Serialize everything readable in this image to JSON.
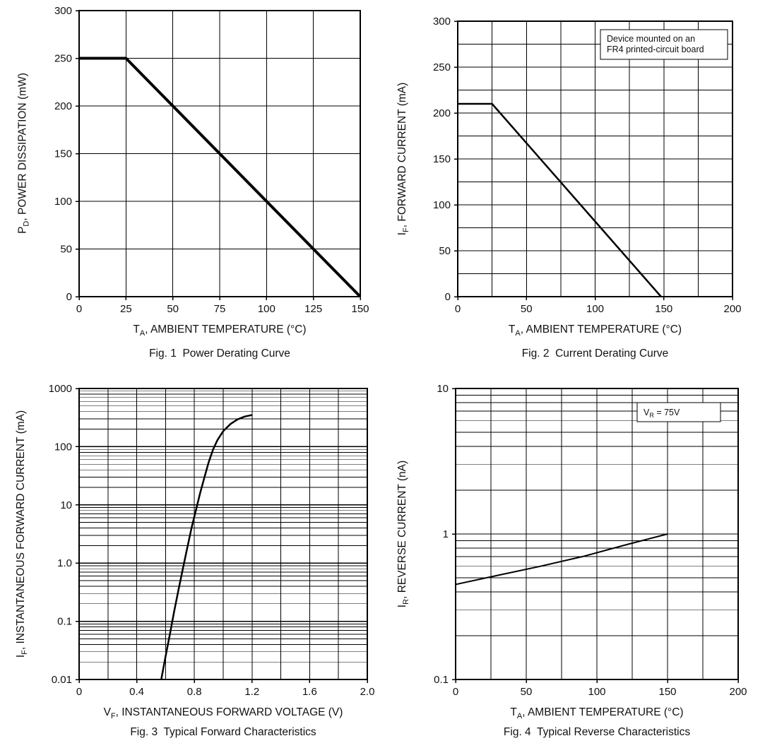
{
  "page": {
    "background": "#ffffff",
    "text_color": "#111111",
    "line_color": "#000000"
  },
  "chart_data": [
    {
      "type": "line",
      "title": "Fig. 1  Power Derating Curve",
      "xlabel": "TA, AMBIENT TEMPERATURE (°C)",
      "ylabel": "PD, POWER DISSIPATION (mW)",
      "xlabel_parts": {
        "sym": "T",
        "sub": "A",
        "rest": ", AMBIENT TEMPERATURE (°C)"
      },
      "ylabel_parts": {
        "sym": "P",
        "sub": "D",
        "rest": ", POWER DISSIPATION (mW)"
      },
      "x": {
        "scale": "linear",
        "min": 0,
        "max": 150,
        "grid_step": 25,
        "tick_values": [
          0,
          25,
          50,
          75,
          100,
          125,
          150
        ],
        "tick_labels": [
          "0",
          "25",
          "50",
          "75",
          "100",
          "125",
          "150"
        ]
      },
      "y": {
        "scale": "linear",
        "min": 0,
        "max": 300,
        "grid_step": 50,
        "tick_values": [
          0,
          50,
          100,
          150,
          200,
          250,
          300
        ],
        "tick_labels": [
          "0",
          "50",
          "100",
          "150",
          "200",
          "250",
          "300"
        ]
      },
      "series": [
        {
          "name": "power-derating",
          "stroke_width": 4,
          "points": [
            [
              0,
              250
            ],
            [
              25,
              250
            ],
            [
              150,
              0
            ]
          ]
        }
      ],
      "annotation": null
    },
    {
      "type": "line",
      "title": "Fig. 2  Current Derating Curve",
      "xlabel": "TA, AMBIENT TEMPERATURE (°C)",
      "ylabel": "IF, FORWARD CURRENT (mA)",
      "xlabel_parts": {
        "sym": "T",
        "sub": "A",
        "rest": ", AMBIENT TEMPERATURE (°C)"
      },
      "ylabel_parts": {
        "sym": "I",
        "sub": "F",
        "rest": ", FORWARD CURRENT (mA)"
      },
      "x": {
        "scale": "linear",
        "min": 0,
        "max": 200,
        "grid_step": 25,
        "tick_values": [
          0,
          50,
          100,
          150,
          200
        ],
        "tick_labels": [
          "0",
          "50",
          "100",
          "150",
          "200"
        ]
      },
      "y": {
        "scale": "linear",
        "min": 0,
        "max": 300,
        "grid_step": 25,
        "tick_values": [
          0,
          50,
          100,
          150,
          200,
          250,
          300
        ],
        "tick_labels": [
          "0",
          "50",
          "100",
          "150",
          "200",
          "250",
          "300"
        ]
      },
      "series": [
        {
          "name": "current-derating",
          "stroke_width": 2.5,
          "points": [
            [
              0,
              210
            ],
            [
              25,
              210
            ],
            [
              148,
              0
            ]
          ]
        }
      ],
      "annotation": {
        "lines": [
          [
            {
              "text": "Device mounted on an"
            }
          ],
          [
            {
              "text": "FR4 printed-circuit board"
            }
          ]
        ]
      }
    },
    {
      "type": "line",
      "title": "Fig. 3  Typical Forward Characteristics",
      "xlabel": "VF, INSTANTANEOUS FORWARD VOLTAGE (V)",
      "ylabel": "IF, INSTANTANEOUS FORWARD CURRENT (mA)",
      "xlabel_parts": {
        "sym": "V",
        "sub": "F",
        "rest": ", INSTANTANEOUS FORWARD VOLTAGE (V)"
      },
      "ylabel_parts": {
        "sym": "I",
        "sub": "F",
        "rest": ", INSTANTANEOUS FORWARD CURRENT (mA)"
      },
      "x": {
        "scale": "linear",
        "min": 0,
        "max": 2,
        "grid_step": 0.2,
        "tick_values": [
          0,
          0.4,
          0.8,
          1.2,
          1.6,
          2
        ],
        "tick_labels": [
          "0",
          "0.4",
          "0.8",
          "1.2",
          "1.6",
          "2.0"
        ]
      },
      "y": {
        "scale": "log",
        "min": 0.01,
        "max": 1000,
        "tick_values": [
          1000,
          100,
          10,
          1,
          0.1,
          0.01
        ],
        "tick_labels": [
          "1000",
          "100",
          "10",
          "1.0",
          "0.1",
          "0.01"
        ]
      },
      "series": [
        {
          "name": "forward-characteristic",
          "stroke_width": 2.5,
          "points": [
            [
              0.57,
              0.01
            ],
            [
              0.6,
              0.025
            ],
            [
              0.63,
              0.06
            ],
            [
              0.66,
              0.15
            ],
            [
              0.69,
              0.35
            ],
            [
              0.72,
              0.8
            ],
            [
              0.75,
              1.8
            ],
            [
              0.78,
              4
            ],
            [
              0.81,
              8
            ],
            [
              0.84,
              16
            ],
            [
              0.87,
              30
            ],
            [
              0.9,
              55
            ],
            [
              0.93,
              90
            ],
            [
              0.96,
              130
            ],
            [
              1.0,
              185
            ],
            [
              1.05,
              245
            ],
            [
              1.1,
              295
            ],
            [
              1.15,
              330
            ],
            [
              1.2,
              350
            ]
          ]
        }
      ],
      "annotation": null
    },
    {
      "type": "line",
      "title": "Fig. 4  Typical Reverse Characteristics",
      "xlabel": "TA, AMBIENT TEMPERATURE (°C)",
      "ylabel": "IR, REVERSE CURRENT (nA)",
      "xlabel_parts": {
        "sym": "T",
        "sub": "A",
        "rest": ", AMBIENT TEMPERATURE (°C)"
      },
      "ylabel_parts": {
        "sym": "I",
        "sub": "R",
        "rest": ", REVERSE CURRENT (nA)"
      },
      "x": {
        "scale": "linear",
        "min": 0,
        "max": 200,
        "grid_step": 25,
        "tick_values": [
          0,
          50,
          100,
          150,
          200
        ],
        "tick_labels": [
          "0",
          "50",
          "100",
          "150",
          "200"
        ]
      },
      "y": {
        "scale": "log",
        "min": 0.1,
        "max": 10,
        "tick_values": [
          10,
          1,
          0.1
        ],
        "tick_labels": [
          "10",
          "1",
          "0.1"
        ]
      },
      "series": [
        {
          "name": "reverse-current",
          "stroke_width": 2,
          "points": [
            [
              0,
              0.45
            ],
            [
              30,
              0.52
            ],
            [
              60,
              0.6
            ],
            [
              90,
              0.7
            ],
            [
              120,
              0.84
            ],
            [
              150,
              1.0
            ]
          ]
        }
      ],
      "annotation": {
        "lines": [
          [
            {
              "text": "V"
            },
            {
              "text": "R",
              "sub": true
            },
            {
              "text": " = 75V"
            }
          ]
        ]
      }
    }
  ]
}
